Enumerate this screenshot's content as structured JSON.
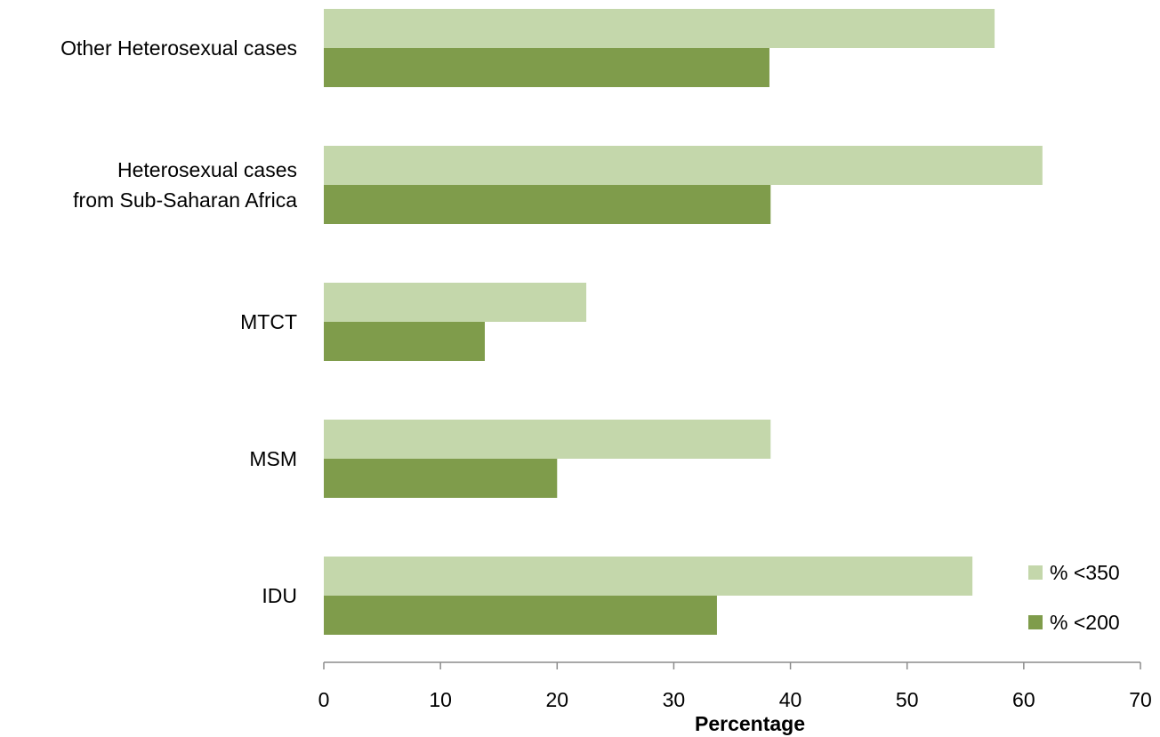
{
  "chart_data": {
    "type": "bar",
    "orientation": "horizontal",
    "categories": [
      [
        "Other Heterosexual cases"
      ],
      [
        "Heterosexual cases",
        "from Sub-Saharan Africa"
      ],
      [
        "MTCT"
      ],
      [
        "MSM"
      ],
      [
        "IDU"
      ]
    ],
    "series": [
      {
        "name": "% <350",
        "color": "#c4d7ab",
        "values": [
          57.5,
          61.6,
          22.5,
          38.3,
          55.6
        ]
      },
      {
        "name": "% <200",
        "color": "#7f9c4b",
        "values": [
          38.2,
          38.3,
          13.8,
          20.0,
          33.7
        ]
      }
    ],
    "xlabel": "Percentage",
    "ylabel": "",
    "title": "",
    "xlim": [
      0,
      70
    ],
    "xticks": [
      0,
      10,
      20,
      30,
      40,
      50,
      60,
      70
    ],
    "grid": false,
    "legend_position": "bottom-right"
  }
}
